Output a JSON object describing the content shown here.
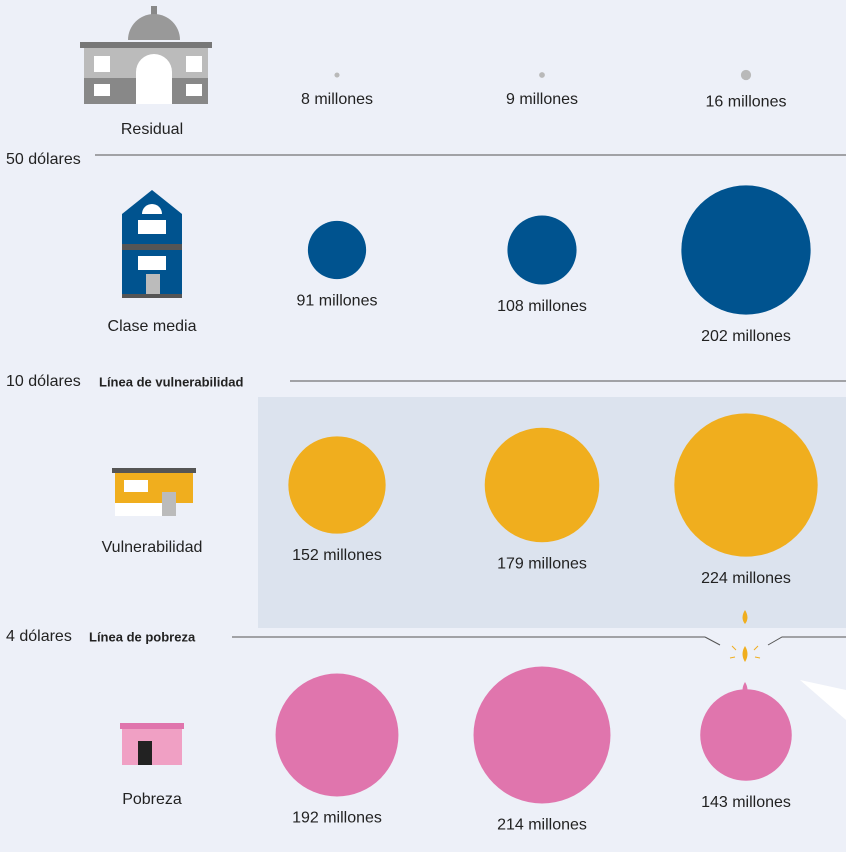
{
  "chart_data": {
    "type": "bubble",
    "series": [
      {
        "name": "Residual",
        "color": "#b9b9b9",
        "values": [
          8,
          9,
          16
        ],
        "value_labels": [
          "8 millones",
          "9 millones",
          "16 millones"
        ]
      },
      {
        "name": "Clase media",
        "color": "#00538f",
        "values": [
          91,
          108,
          202
        ],
        "value_labels": [
          "91 millones",
          "108 millones",
          "202 millones"
        ]
      },
      {
        "name": "Vulnerabilidad",
        "color": "#f0ae1e",
        "values": [
          152,
          179,
          224
        ],
        "value_labels": [
          "152 millones",
          "179 millones",
          "224 millones"
        ]
      },
      {
        "name": "Pobreza",
        "color": "#e075ad",
        "values": [
          192,
          214,
          143
        ],
        "value_labels": [
          "192 millones",
          "214 millones",
          "143 millones"
        ]
      }
    ],
    "thresholds": [
      {
        "label": "50 dólares"
      },
      {
        "label": "10 dólares",
        "line": "Línea de vulnerabilidad"
      },
      {
        "label": "4 dólares",
        "line": "Línea de pobreza"
      }
    ]
  }
}
